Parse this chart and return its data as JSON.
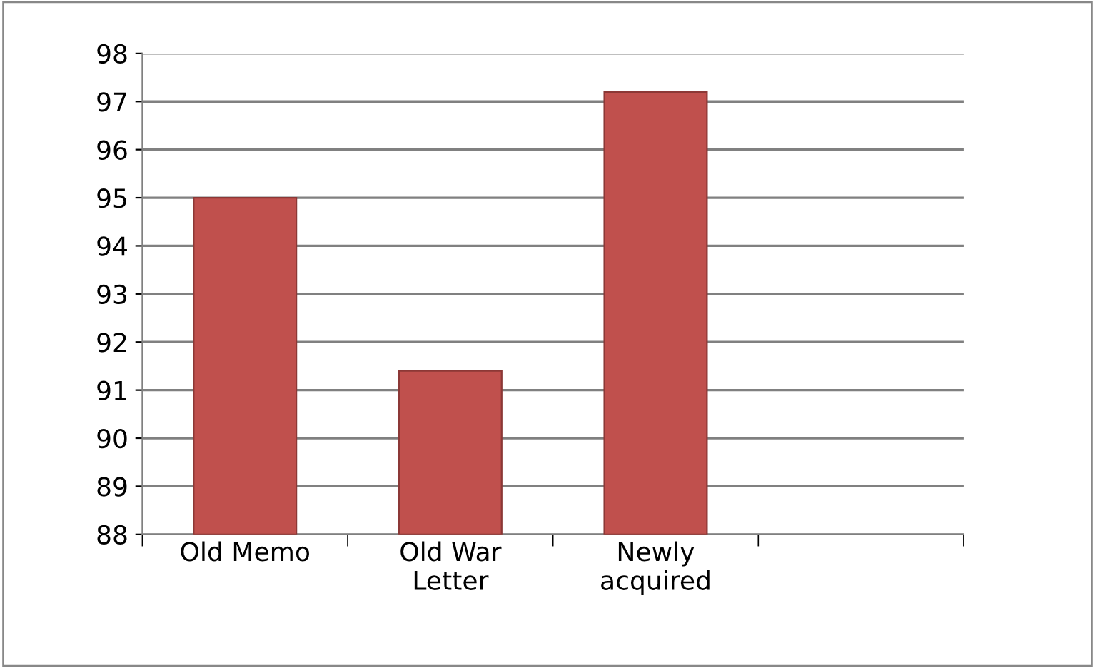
{
  "chart_data": {
    "type": "bar",
    "categories": [
      "Old Memo",
      "Old War\nLetter",
      "Newly\nacquired",
      null
    ],
    "values": [
      95.0,
      91.4,
      97.2,
      null
    ],
    "color": "#c0504d",
    "ylim": [
      88,
      98
    ],
    "yticks": [
      88,
      89,
      90,
      91,
      92,
      93,
      94,
      95,
      96,
      97,
      98
    ],
    "grid": "y"
  }
}
